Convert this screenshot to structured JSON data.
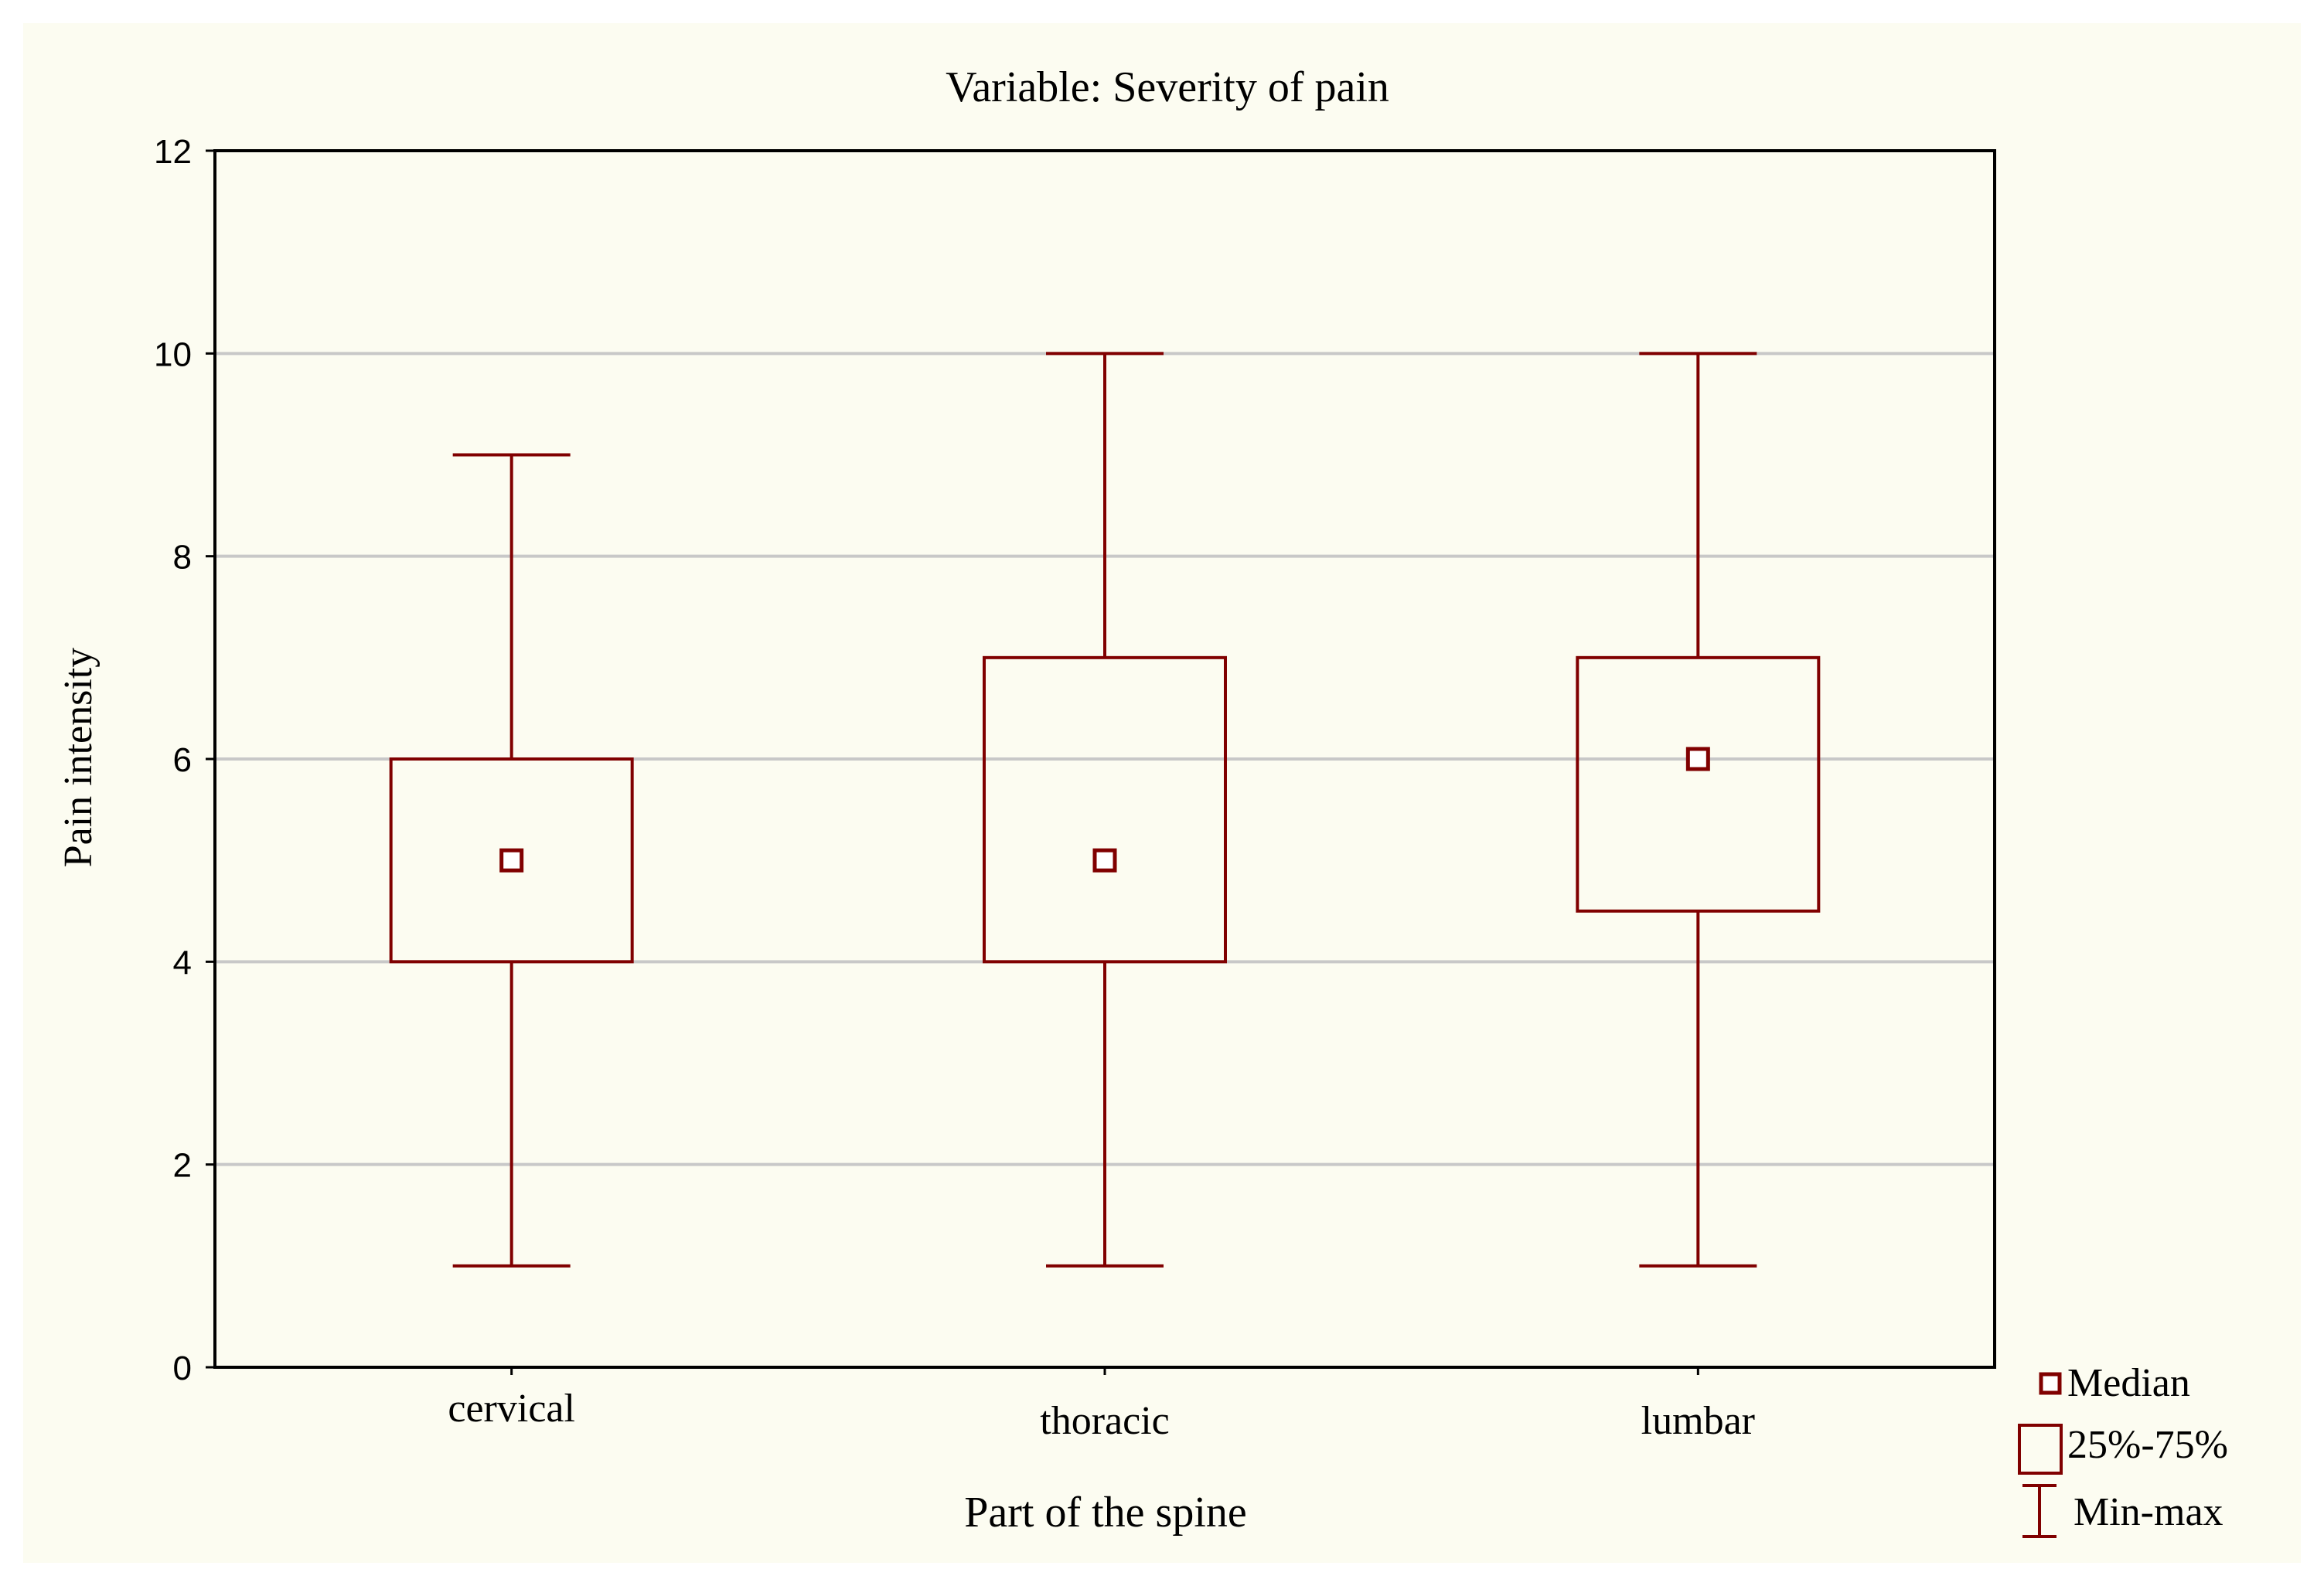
{
  "colors": {
    "background": "#fcfcf1",
    "box": "#800000",
    "grid": "#c8c8c8",
    "axis": "#000000"
  },
  "chart_data": {
    "type": "box",
    "title": "Variable: Severity of pain",
    "xlabel": "Part of the spine",
    "ylabel": "Pain intensity",
    "ylim": [
      0,
      12
    ],
    "yticks": [
      0,
      2,
      4,
      6,
      8,
      10,
      12
    ],
    "grid": true,
    "categories": [
      "cervical",
      "thoracic",
      "lumbar"
    ],
    "boxes": [
      {
        "category": "cervical",
        "min": 1,
        "q1": 4,
        "median": 5,
        "q3": 6,
        "max": 9
      },
      {
        "category": "thoracic",
        "min": 1,
        "q1": 4,
        "median": 5,
        "q3": 7,
        "max": 10
      },
      {
        "category": "lumbar",
        "min": 1,
        "q1": 4.5,
        "median": 6,
        "q3": 7,
        "max": 10
      }
    ],
    "legend": {
      "position": "bottom-right",
      "entries": [
        {
          "symbol": "median",
          "label": "Median"
        },
        {
          "symbol": "box",
          "label": "25%-75%"
        },
        {
          "symbol": "whisker",
          "label": "Min-max"
        }
      ]
    }
  }
}
